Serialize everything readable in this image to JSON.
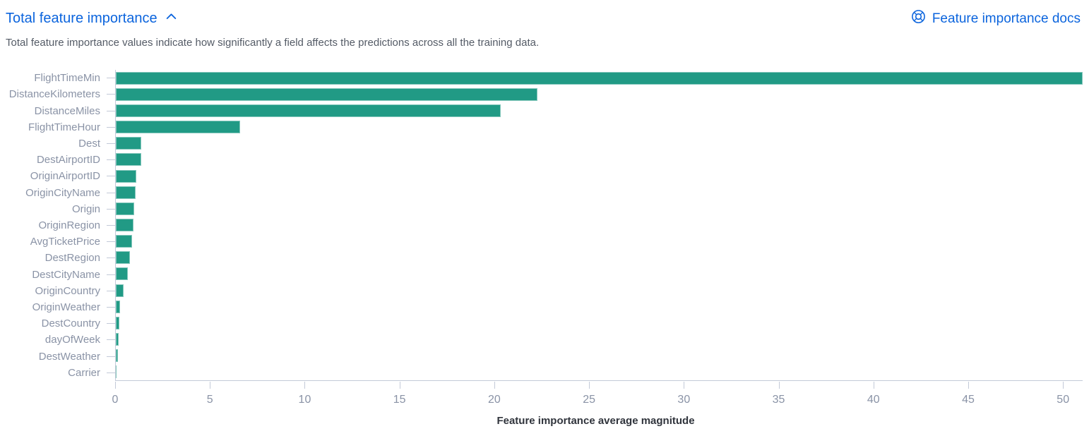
{
  "header": {
    "title": "Total feature importance",
    "docs_link_label": "Feature importance docs"
  },
  "description": "Total feature importance values indicate how significantly a field affects the predictions across all the training data.",
  "colors": {
    "link_blue": "#0B64DD",
    "bar_teal": "#219A85",
    "axis_gray": "#C3CAD8",
    "label_gray": "#8A93A6",
    "text_gray": "#545B66",
    "axis_title": "#30343C"
  },
  "chart_data": {
    "type": "bar",
    "orientation": "horizontal",
    "title": "Total feature importance",
    "xlabel": "Feature importance average magnitude",
    "ylabel": "",
    "categories": [
      "FlightTimeMin",
      "DistanceKilometers",
      "DistanceMiles",
      "FlightTimeHour",
      "Dest",
      "DestAirportID",
      "OriginAirportID",
      "OriginCityName",
      "Origin",
      "OriginRegion",
      "AvgTicketPrice",
      "DestRegion",
      "DestCityName",
      "OriginCountry",
      "OriginWeather",
      "DestCountry",
      "dayOfWeek",
      "DestWeather",
      "Carrier"
    ],
    "values": [
      50.7,
      22.1,
      20.2,
      6.5,
      1.35,
      1.32,
      1.07,
      1.02,
      0.96,
      0.91,
      0.86,
      0.73,
      0.63,
      0.41,
      0.22,
      0.17,
      0.15,
      0.12,
      0.03
    ],
    "xticks": [
      0,
      5,
      10,
      15,
      20,
      25,
      30,
      35,
      40,
      45,
      50
    ],
    "xlim": [
      0,
      50.7
    ],
    "grid": false,
    "legend": false
  }
}
